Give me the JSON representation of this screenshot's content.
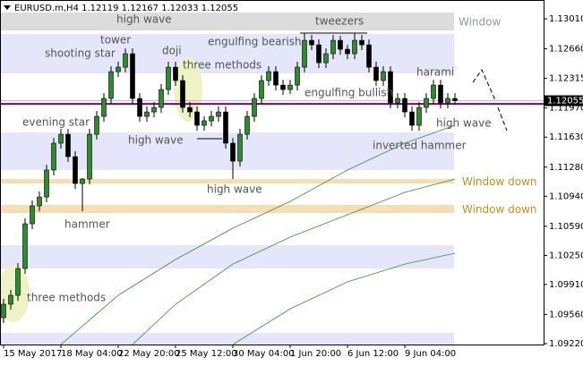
{
  "chart_data": {
    "type": "candlestick",
    "header": {
      "symbol": "EURUSD.m,H4",
      "open": 1.12119,
      "high": 1.12167,
      "low": 1.12033,
      "close": 1.12055
    },
    "last_price": 1.12055,
    "up_color": "#2e8b2e",
    "down_color": "#000000",
    "ylim": [
      1.0921,
      1.1323
    ],
    "yticks": [
      {
        "value": 1.1301,
        "label": "1.13010"
      },
      {
        "value": 1.1266,
        "label": "1.12660"
      },
      {
        "value": 1.12315,
        "label": "1.12315"
      },
      {
        "value": 1.1197,
        "label": "1.11970"
      },
      {
        "value": 1.1163,
        "label": "1.11630"
      },
      {
        "value": 1.1128,
        "label": "1.11280"
      },
      {
        "value": 1.1094,
        "label": "1.10940"
      },
      {
        "value": 1.1059,
        "label": "1.10590"
      },
      {
        "value": 1.1025,
        "label": "1.10250"
      },
      {
        "value": 1.0991,
        "label": "1.09910"
      },
      {
        "value": 1.0956,
        "label": "1.09560"
      },
      {
        "value": 1.0922,
        "label": "1.09220"
      }
    ],
    "xlim": [
      -0.5,
      75.375
    ],
    "xticks": [
      {
        "value": 0,
        "label": "15 May 2017"
      },
      {
        "value": 8,
        "label": "18 May 04:00"
      },
      {
        "value": 16,
        "label": "22 May 20:00"
      },
      {
        "value": 24,
        "label": "25 May 12:00"
      },
      {
        "value": 32,
        "label": "30 May 04:00"
      },
      {
        "value": 40,
        "label": "1 Jun 20:00"
      },
      {
        "value": 48,
        "label": "6 Jun 12:00"
      },
      {
        "value": 56,
        "label": "9 Jun 04:00"
      }
    ],
    "candles": {
      "open": [
        1.09523,
        1.0968,
        1.09784,
        1.10097,
        1.10619,
        1.10828,
        1.10932,
        1.11246,
        1.11559,
        1.11663,
        1.11402,
        1.11089,
        1.11141,
        1.11663,
        1.11872,
        1.12081,
        1.12394,
        1.12446,
        1.12603,
        1.12081,
        1.11872,
        1.11924,
        1.11976,
        1.12185,
        1.12446,
        1.1229,
        1.11976,
        1.11924,
        1.11768,
        1.1182,
        1.11872,
        1.11924,
        1.11559,
        1.1135,
        1.11663,
        1.11872,
        1.12081,
        1.1229,
        1.12394,
        1.12237,
        1.12185,
        1.12237,
        1.12446,
        1.12759,
        1.12707,
        1.12498,
        1.12603,
        1.12759,
        1.12655,
        1.12603,
        1.12759,
        1.12707,
        1.12446,
        1.1229,
        1.12394,
        1.12029,
        1.12081,
        1.11924,
        1.11768,
        1.11976,
        1.12081,
        1.12237,
        1.12029,
        1.12081
      ],
      "high": [
        1.09742,
        1.09847,
        1.1016,
        1.10682,
        1.10891,
        1.10995,
        1.11308,
        1.11621,
        1.11726,
        1.11726,
        1.11465,
        1.11152,
        1.11726,
        1.11935,
        1.12143,
        1.12457,
        1.12509,
        1.12665,
        1.12665,
        1.12143,
        1.11987,
        1.12039,
        1.12248,
        1.12509,
        1.12509,
        1.12352,
        1.12039,
        1.11987,
        1.11872,
        1.11935,
        1.11987,
        1.11987,
        1.11621,
        1.11726,
        1.11935,
        1.12143,
        1.12352,
        1.12457,
        1.12457,
        1.123,
        1.123,
        1.12509,
        1.12843,
        1.12822,
        1.1277,
        1.12665,
        1.12822,
        1.12812,
        1.12707,
        1.12843,
        1.12822,
        1.1277,
        1.12509,
        1.12457,
        1.12457,
        1.12143,
        1.12143,
        1.11987,
        1.12039,
        1.12143,
        1.123,
        1.123,
        1.12143,
        1.12143
      ],
      "low": [
        1.0946,
        1.09617,
        1.09721,
        1.10035,
        1.10557,
        1.10765,
        1.1087,
        1.11183,
        1.11496,
        1.1134,
        1.11026,
        1.10765,
        1.11079,
        1.11601,
        1.11809,
        1.12018,
        1.12331,
        1.12384,
        1.12018,
        1.11809,
        1.11809,
        1.11862,
        1.11914,
        1.12123,
        1.12227,
        1.11914,
        1.11862,
        1.11705,
        1.11705,
        1.11757,
        1.11809,
        1.11496,
        1.11141,
        1.11287,
        1.11601,
        1.11809,
        1.12018,
        1.12227,
        1.12175,
        1.12123,
        1.12133,
        1.12175,
        1.12384,
        1.12645,
        1.12436,
        1.12436,
        1.1254,
        1.12592,
        1.1254,
        1.1254,
        1.12645,
        1.12384,
        1.12227,
        1.12227,
        1.11966,
        1.11966,
        1.11862,
        1.11705,
        1.11705,
        1.11914,
        1.12018,
        1.11966,
        1.11966,
        1.12008
      ],
      "close": [
        1.0968,
        1.09784,
        1.10097,
        1.10619,
        1.10828,
        1.10932,
        1.11246,
        1.11559,
        1.11663,
        1.11402,
        1.11089,
        1.11141,
        1.11663,
        1.11872,
        1.12081,
        1.12394,
        1.12446,
        1.12603,
        1.12081,
        1.11872,
        1.11924,
        1.11976,
        1.12185,
        1.12446,
        1.1229,
        1.11976,
        1.11924,
        1.11768,
        1.1182,
        1.11872,
        1.11924,
        1.11559,
        1.1135,
        1.11663,
        1.11872,
        1.12081,
        1.1229,
        1.12394,
        1.12237,
        1.12185,
        1.12237,
        1.12446,
        1.12759,
        1.12707,
        1.12498,
        1.12603,
        1.12759,
        1.12655,
        1.12603,
        1.12759,
        1.12707,
        1.12446,
        1.1229,
        1.12394,
        1.12029,
        1.12081,
        1.11924,
        1.11768,
        1.11976,
        1.12081,
        1.12237,
        1.12029,
        1.12081,
        1.12055
      ]
    },
    "series": [
      {
        "color": "#3c8c3c",
        "x": [
          8,
          16,
          24,
          32,
          40,
          48,
          56,
          63
        ],
        "values": [
          1.0921,
          1.09784,
          1.10202,
          1.10567,
          1.1088,
          1.11246,
          1.11559,
          1.11768
        ]
      },
      {
        "color": "#3c8c3c",
        "x": [
          18,
          24,
          32,
          40,
          48,
          56,
          63
        ],
        "values": [
          1.0921,
          1.0968,
          1.10149,
          1.10463,
          1.10724,
          1.10985,
          1.11141
        ]
      },
      {
        "color": "#3c8c3c",
        "x": [
          32,
          40,
          48,
          56,
          63
        ],
        "values": [
          1.0921,
          1.09627,
          1.09941,
          1.10149,
          1.10275
        ]
      }
    ],
    "levels": [
      {
        "value": 1.12018,
        "color": "#800080"
      }
    ],
    "zones": [
      {
        "top": 1.13083,
        "bottom": 1.12874,
        "color": "#dcdcdc",
        "label": "Window",
        "label_color": "#8c9bb0"
      },
      {
        "top": 1.12833,
        "bottom": 1.12373,
        "color": "#e6e6fa"
      },
      {
        "top": 1.11684,
        "bottom": 1.11246,
        "color": "#e6e6fa"
      },
      {
        "top": 1.11141,
        "bottom": 1.11089,
        "color": "#f5deb3",
        "label": "Window down",
        "label_color": "#c8901a"
      },
      {
        "top": 1.10838,
        "bottom": 1.10745,
        "color": "#f5deb3",
        "label": "Window down",
        "label_color": "#c8901a"
      },
      {
        "top": 1.10369,
        "bottom": 1.10097,
        "color": "#e6e6fa"
      },
      {
        "top": 1.09346,
        "bottom": 1.0921,
        "color": "#e6e6fa"
      }
    ],
    "annotations": [
      "high wave",
      "tweezers",
      "tower",
      "doji",
      "shooting star",
      "engulfing bearish",
      "three methods",
      "harami",
      "engulfing bullish",
      "evening star",
      "high wave",
      "high wave",
      "inverted hammer",
      "high wave",
      "hammer",
      "three methods"
    ]
  }
}
